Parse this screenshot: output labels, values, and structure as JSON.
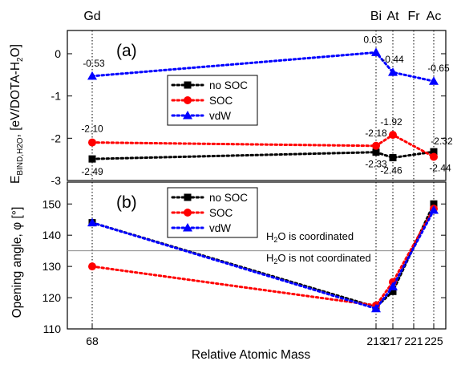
{
  "colors": {
    "no_soc": "#000000",
    "soc": "#ff0000",
    "vdw": "#0000ff"
  },
  "top_labels": [
    {
      "text": "Gd",
      "x": 68
    },
    {
      "text": "Bi",
      "x": 213
    },
    {
      "text": "At",
      "x": 217
    },
    {
      "text": "Fr",
      "x": 221
    },
    {
      "text": "Ac",
      "x": 225
    }
  ],
  "chart_data": [
    {
      "type": "line",
      "panel_label": "(a)",
      "ylabel_parts": {
        "main": "E",
        "sub1": "BIND,H2O",
        "mid": ", [eV/DOTA-H",
        "sub2": "2",
        "end": "O]"
      },
      "ylim": [
        -3,
        0.55
      ],
      "yticks": [
        0,
        -1,
        -2,
        -3
      ],
      "ytick_labels": [
        "0",
        "-1",
        "-2",
        "-3"
      ],
      "x": [
        68,
        213,
        217,
        225
      ],
      "series": [
        {
          "name": "no SOC",
          "marker": "square",
          "values": [
            -2.49,
            -2.33,
            -2.46,
            -2.32
          ],
          "labels": [
            "-2.49",
            "-2.33",
            "-2.46",
            "-2.32"
          ]
        },
        {
          "name": "SOC",
          "marker": "circle",
          "values": [
            -2.1,
            -2.18,
            -1.92,
            -2.44
          ],
          "labels": [
            "-2.10",
            "-2.18",
            "-1.92",
            "-2.44"
          ]
        },
        {
          "name": "vdW",
          "marker": "triangle",
          "values": [
            -0.53,
            0.03,
            -0.44,
            -0.65
          ],
          "labels": [
            "-0.53",
            "0.03",
            "-0.44",
            "-0.65"
          ]
        }
      ],
      "legend_position": "center-left"
    },
    {
      "type": "line",
      "panel_label": "(b)",
      "ylabel": "Opening angle, φ [°]",
      "xlabel": "Relative Atomic Mass",
      "ylim": [
        110,
        157
      ],
      "yticks": [
        110,
        120,
        130,
        140,
        150
      ],
      "ytick_labels": [
        "110",
        "120",
        "130",
        "140",
        "150"
      ],
      "x": [
        68,
        213,
        217,
        225
      ],
      "xticks": [
        68,
        213,
        217,
        221,
        225
      ],
      "xtick_labels": [
        "68",
        "213",
        "217",
        "221",
        "225"
      ],
      "series": [
        {
          "name": "no SOC",
          "marker": "square",
          "values": [
            144,
            117,
            122,
            150
          ]
        },
        {
          "name": "SOC",
          "marker": "circle",
          "values": [
            130,
            117.5,
            125,
            148.5
          ]
        },
        {
          "name": "vdW",
          "marker": "triangle",
          "values": [
            144,
            116.5,
            123.5,
            148
          ]
        }
      ],
      "reference_line": 135,
      "annotations": {
        "above_parts": [
          "H",
          "2",
          "O is coordinated"
        ],
        "below_parts": [
          "H",
          "2",
          "O is not coordinated"
        ]
      },
      "legend_position": "top-center"
    }
  ]
}
